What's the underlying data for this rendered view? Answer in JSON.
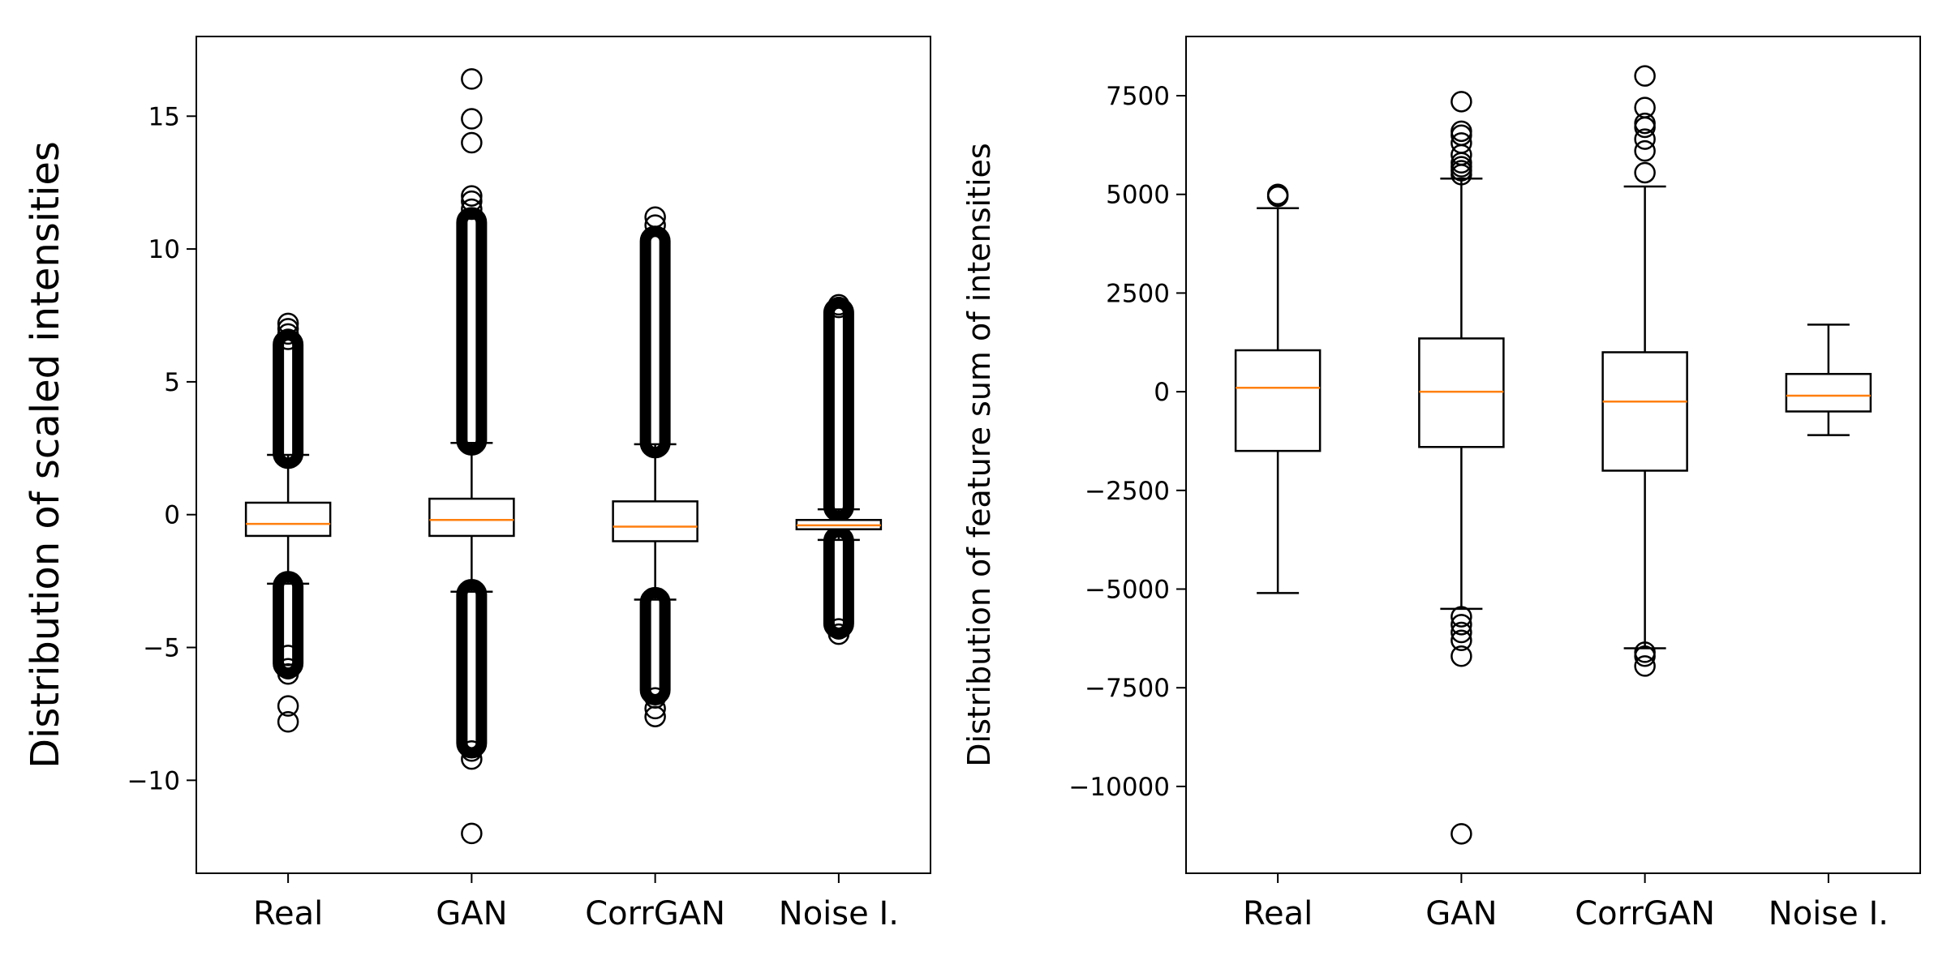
{
  "chart_data": [
    {
      "type": "box",
      "title": "",
      "xlabel": "",
      "ylabel": "Distribution of scaled intensities",
      "ylim": [
        -13.5,
        18.0
      ],
      "yticks": [
        -10,
        -5,
        0,
        5,
        10,
        15
      ],
      "yticklabels": [
        "−10",
        "−5",
        "0",
        "5",
        "10",
        "15"
      ],
      "categories": [
        "Real",
        "GAN",
        "CorrGAN",
        "Noise I."
      ],
      "boxes": [
        {
          "q1": -0.8,
          "median": -0.35,
          "q3": 0.45,
          "whisker_low": -2.6,
          "whisker_high": 2.25,
          "outliers_dense": [
            [
              -5.6,
              -2.7
            ],
            [
              2.3,
              6.4
            ]
          ],
          "outliers": [
            -7.8,
            -7.2,
            -6.0,
            -5.8,
            -5.3,
            6.6,
            6.8,
            7.0,
            7.2
          ]
        },
        {
          "q1": -0.8,
          "median": -0.2,
          "q3": 0.6,
          "whisker_low": -2.9,
          "whisker_high": 2.7,
          "outliers_dense": [
            [
              -8.6,
              -3.0
            ],
            [
              2.8,
              11.0
            ]
          ],
          "outliers": [
            -12.0,
            -9.2,
            -8.9,
            11.5,
            11.8,
            12.0,
            14.0,
            14.9,
            16.4
          ]
        },
        {
          "q1": -1.0,
          "median": -0.45,
          "q3": 0.5,
          "whisker_low": -3.2,
          "whisker_high": 2.65,
          "outliers_dense": [
            [
              -6.6,
              -3.3
            ],
            [
              2.7,
              10.3
            ]
          ],
          "outliers": [
            -7.6,
            -7.3,
            -6.9,
            10.9,
            11.2
          ]
        },
        {
          "q1": -0.55,
          "median": -0.4,
          "q3": -0.2,
          "whisker_low": -0.95,
          "whisker_high": 0.2,
          "outliers_dense": [
            [
              -4.1,
              -1.0
            ],
            [
              0.3,
              7.6
            ]
          ],
          "outliers": [
            -4.5,
            -4.3,
            7.8,
            7.9
          ]
        }
      ]
    },
    {
      "type": "box",
      "title": "",
      "xlabel": "",
      "ylabel": "Distribution of feature sum of intensities",
      "ylim": [
        -12200,
        9000
      ],
      "yticks": [
        -10000,
        -7500,
        -5000,
        -2500,
        0,
        2500,
        5000,
        7500
      ],
      "yticklabels": [
        "−10000",
        "−7500",
        "−5000",
        "−2500",
        "0",
        "2500",
        "5000",
        "7500"
      ],
      "categories": [
        "Real",
        "GAN",
        "CorrGAN",
        "Noise I."
      ],
      "boxes": [
        {
          "q1": -1500,
          "median": 100,
          "q3": 1050,
          "whisker_low": -5100,
          "whisker_high": 4650,
          "outliers_dense": [],
          "outliers": [
            4950,
            5000
          ]
        },
        {
          "q1": -1400,
          "median": 0,
          "q3": 1350,
          "whisker_low": -5500,
          "whisker_high": 5400,
          "outliers_dense": [],
          "outliers": [
            -11200,
            -6700,
            -6300,
            -6100,
            -5900,
            -5700,
            5500,
            5600,
            5700,
            5800,
            6000,
            6300,
            6500,
            6600,
            7350
          ]
        },
        {
          "q1": -2000,
          "median": -250,
          "q3": 1000,
          "whisker_low": -6500,
          "whisker_high": 5200,
          "outliers_dense": [],
          "outliers": [
            -6950,
            -6700,
            -6600,
            5550,
            6100,
            6400,
            6700,
            6800,
            7200,
            8000
          ]
        },
        {
          "q1": -500,
          "median": -100,
          "q3": 450,
          "whisker_low": -1100,
          "whisker_high": 1700,
          "outliers_dense": [],
          "outliers": []
        }
      ]
    }
  ],
  "style": {
    "median_color": "#ff7f0e",
    "box_color": "#000000"
  }
}
